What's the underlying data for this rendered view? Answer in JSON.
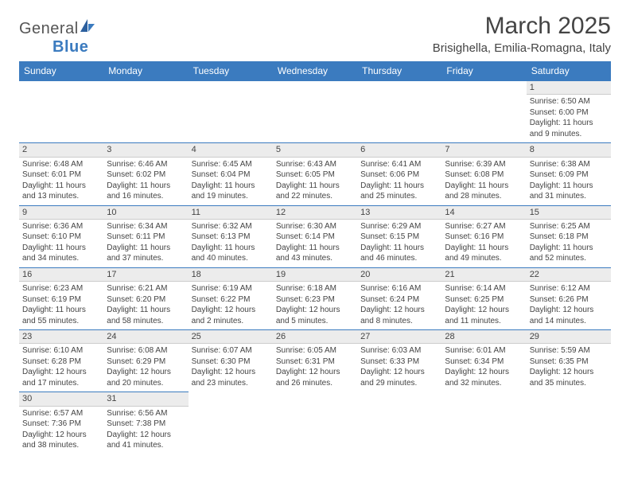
{
  "brand": {
    "part1": "General",
    "part2": "Blue"
  },
  "title": "March 2025",
  "location": "Brisighella, Emilia-Romagna, Italy",
  "colors": {
    "header_bg": "#3b7bbf",
    "header_text": "#ffffff",
    "daybar_bg": "#ececec",
    "daybar_border_top": "#3b7bbf",
    "body_text": "#444444"
  },
  "typography": {
    "title_fontsize": 30,
    "location_fontsize": 15,
    "dayheader_fontsize": 12,
    "daynum_fontsize": 11,
    "cell_fontsize": 10
  },
  "day_headers": [
    "Sunday",
    "Monday",
    "Tuesday",
    "Wednesday",
    "Thursday",
    "Friday",
    "Saturday"
  ],
  "weeks": [
    [
      {
        "n": "",
        "sunrise": "",
        "sunset": "",
        "daylight": ""
      },
      {
        "n": "",
        "sunrise": "",
        "sunset": "",
        "daylight": ""
      },
      {
        "n": "",
        "sunrise": "",
        "sunset": "",
        "daylight": ""
      },
      {
        "n": "",
        "sunrise": "",
        "sunset": "",
        "daylight": ""
      },
      {
        "n": "",
        "sunrise": "",
        "sunset": "",
        "daylight": ""
      },
      {
        "n": "",
        "sunrise": "",
        "sunset": "",
        "daylight": ""
      },
      {
        "n": "1",
        "sunrise": "Sunrise: 6:50 AM",
        "sunset": "Sunset: 6:00 PM",
        "daylight": "Daylight: 11 hours and 9 minutes."
      }
    ],
    [
      {
        "n": "2",
        "sunrise": "Sunrise: 6:48 AM",
        "sunset": "Sunset: 6:01 PM",
        "daylight": "Daylight: 11 hours and 13 minutes."
      },
      {
        "n": "3",
        "sunrise": "Sunrise: 6:46 AM",
        "sunset": "Sunset: 6:02 PM",
        "daylight": "Daylight: 11 hours and 16 minutes."
      },
      {
        "n": "4",
        "sunrise": "Sunrise: 6:45 AM",
        "sunset": "Sunset: 6:04 PM",
        "daylight": "Daylight: 11 hours and 19 minutes."
      },
      {
        "n": "5",
        "sunrise": "Sunrise: 6:43 AM",
        "sunset": "Sunset: 6:05 PM",
        "daylight": "Daylight: 11 hours and 22 minutes."
      },
      {
        "n": "6",
        "sunrise": "Sunrise: 6:41 AM",
        "sunset": "Sunset: 6:06 PM",
        "daylight": "Daylight: 11 hours and 25 minutes."
      },
      {
        "n": "7",
        "sunrise": "Sunrise: 6:39 AM",
        "sunset": "Sunset: 6:08 PM",
        "daylight": "Daylight: 11 hours and 28 minutes."
      },
      {
        "n": "8",
        "sunrise": "Sunrise: 6:38 AM",
        "sunset": "Sunset: 6:09 PM",
        "daylight": "Daylight: 11 hours and 31 minutes."
      }
    ],
    [
      {
        "n": "9",
        "sunrise": "Sunrise: 6:36 AM",
        "sunset": "Sunset: 6:10 PM",
        "daylight": "Daylight: 11 hours and 34 minutes."
      },
      {
        "n": "10",
        "sunrise": "Sunrise: 6:34 AM",
        "sunset": "Sunset: 6:11 PM",
        "daylight": "Daylight: 11 hours and 37 minutes."
      },
      {
        "n": "11",
        "sunrise": "Sunrise: 6:32 AM",
        "sunset": "Sunset: 6:13 PM",
        "daylight": "Daylight: 11 hours and 40 minutes."
      },
      {
        "n": "12",
        "sunrise": "Sunrise: 6:30 AM",
        "sunset": "Sunset: 6:14 PM",
        "daylight": "Daylight: 11 hours and 43 minutes."
      },
      {
        "n": "13",
        "sunrise": "Sunrise: 6:29 AM",
        "sunset": "Sunset: 6:15 PM",
        "daylight": "Daylight: 11 hours and 46 minutes."
      },
      {
        "n": "14",
        "sunrise": "Sunrise: 6:27 AM",
        "sunset": "Sunset: 6:16 PM",
        "daylight": "Daylight: 11 hours and 49 minutes."
      },
      {
        "n": "15",
        "sunrise": "Sunrise: 6:25 AM",
        "sunset": "Sunset: 6:18 PM",
        "daylight": "Daylight: 11 hours and 52 minutes."
      }
    ],
    [
      {
        "n": "16",
        "sunrise": "Sunrise: 6:23 AM",
        "sunset": "Sunset: 6:19 PM",
        "daylight": "Daylight: 11 hours and 55 minutes."
      },
      {
        "n": "17",
        "sunrise": "Sunrise: 6:21 AM",
        "sunset": "Sunset: 6:20 PM",
        "daylight": "Daylight: 11 hours and 58 minutes."
      },
      {
        "n": "18",
        "sunrise": "Sunrise: 6:19 AM",
        "sunset": "Sunset: 6:22 PM",
        "daylight": "Daylight: 12 hours and 2 minutes."
      },
      {
        "n": "19",
        "sunrise": "Sunrise: 6:18 AM",
        "sunset": "Sunset: 6:23 PM",
        "daylight": "Daylight: 12 hours and 5 minutes."
      },
      {
        "n": "20",
        "sunrise": "Sunrise: 6:16 AM",
        "sunset": "Sunset: 6:24 PM",
        "daylight": "Daylight: 12 hours and 8 minutes."
      },
      {
        "n": "21",
        "sunrise": "Sunrise: 6:14 AM",
        "sunset": "Sunset: 6:25 PM",
        "daylight": "Daylight: 12 hours and 11 minutes."
      },
      {
        "n": "22",
        "sunrise": "Sunrise: 6:12 AM",
        "sunset": "Sunset: 6:26 PM",
        "daylight": "Daylight: 12 hours and 14 minutes."
      }
    ],
    [
      {
        "n": "23",
        "sunrise": "Sunrise: 6:10 AM",
        "sunset": "Sunset: 6:28 PM",
        "daylight": "Daylight: 12 hours and 17 minutes."
      },
      {
        "n": "24",
        "sunrise": "Sunrise: 6:08 AM",
        "sunset": "Sunset: 6:29 PM",
        "daylight": "Daylight: 12 hours and 20 minutes."
      },
      {
        "n": "25",
        "sunrise": "Sunrise: 6:07 AM",
        "sunset": "Sunset: 6:30 PM",
        "daylight": "Daylight: 12 hours and 23 minutes."
      },
      {
        "n": "26",
        "sunrise": "Sunrise: 6:05 AM",
        "sunset": "Sunset: 6:31 PM",
        "daylight": "Daylight: 12 hours and 26 minutes."
      },
      {
        "n": "27",
        "sunrise": "Sunrise: 6:03 AM",
        "sunset": "Sunset: 6:33 PM",
        "daylight": "Daylight: 12 hours and 29 minutes."
      },
      {
        "n": "28",
        "sunrise": "Sunrise: 6:01 AM",
        "sunset": "Sunset: 6:34 PM",
        "daylight": "Daylight: 12 hours and 32 minutes."
      },
      {
        "n": "29",
        "sunrise": "Sunrise: 5:59 AM",
        "sunset": "Sunset: 6:35 PM",
        "daylight": "Daylight: 12 hours and 35 minutes."
      }
    ],
    [
      {
        "n": "30",
        "sunrise": "Sunrise: 6:57 AM",
        "sunset": "Sunset: 7:36 PM",
        "daylight": "Daylight: 12 hours and 38 minutes."
      },
      {
        "n": "31",
        "sunrise": "Sunrise: 6:56 AM",
        "sunset": "Sunset: 7:38 PM",
        "daylight": "Daylight: 12 hours and 41 minutes."
      },
      {
        "n": "",
        "sunrise": "",
        "sunset": "",
        "daylight": ""
      },
      {
        "n": "",
        "sunrise": "",
        "sunset": "",
        "daylight": ""
      },
      {
        "n": "",
        "sunrise": "",
        "sunset": "",
        "daylight": ""
      },
      {
        "n": "",
        "sunrise": "",
        "sunset": "",
        "daylight": ""
      },
      {
        "n": "",
        "sunrise": "",
        "sunset": "",
        "daylight": ""
      }
    ]
  ]
}
